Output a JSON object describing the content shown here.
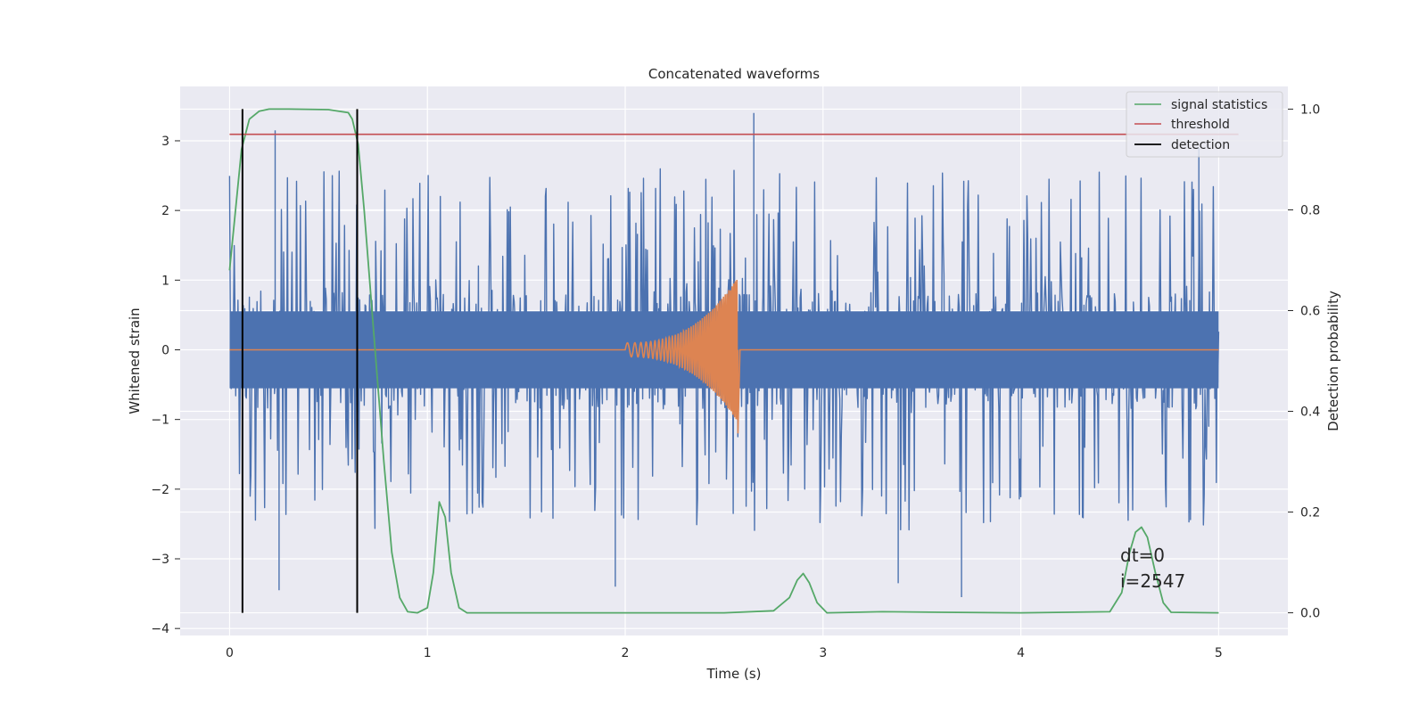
{
  "chart_data": {
    "type": "line",
    "title": "Concatenated waveforms",
    "xlabel": "Time (s)",
    "ylabel_left": "Whitened strain",
    "ylabel_right": "Detection probability",
    "xlim": [
      -0.25,
      5.35
    ],
    "ylim_left": [
      -4.1,
      3.78
    ],
    "ylim_right": [
      -0.045,
      1.045
    ],
    "x_ticks": [
      0,
      1,
      2,
      3,
      4,
      5
    ],
    "x_tick_labels": [
      "0",
      "1",
      "2",
      "3",
      "4",
      "5"
    ],
    "y_left_ticks": [
      -4,
      -3,
      -2,
      -1,
      0,
      1,
      2,
      3
    ],
    "y_left_tick_labels": [
      "−4",
      "−3",
      "−2",
      "−1",
      "0",
      "1",
      "2",
      "3"
    ],
    "y_right_ticks": [
      0.0,
      0.2,
      0.4,
      0.6,
      0.8,
      1.0
    ],
    "y_right_tick_labels": [
      "0.0",
      "0.2",
      "0.4",
      "0.6",
      "0.8",
      "1.0"
    ],
    "grid": true,
    "legend_position": "top-right",
    "series": [
      {
        "kind": "noise",
        "axis": "left",
        "color": "#4c72b0",
        "x_range": [
          0,
          5
        ],
        "core_amplitude": 0.85,
        "peaks": [
          {
            "x": 0.23,
            "y": 3.15
          },
          {
            "x": 0.25,
            "y": -3.45
          },
          {
            "x": 1.95,
            "y": -3.4
          },
          {
            "x": 2.65,
            "y": 3.4
          },
          {
            "x": 3.38,
            "y": -3.35
          },
          {
            "x": 3.7,
            "y": -3.55
          },
          {
            "x": 4.9,
            "y": 2.9
          }
        ]
      },
      {
        "kind": "chirp",
        "axis": "left",
        "color": "#dd8452",
        "x_range": [
          0,
          5
        ],
        "chirp_start": 2.0,
        "chirp_end": 2.57,
        "amplitude_start": 0.1,
        "amplitude_peak": 1.05,
        "amplitude_trough": -1.2
      },
      {
        "name": "signal statistics",
        "axis": "right",
        "color": "#55a868",
        "x": [
          0,
          0.03,
          0.06,
          0.1,
          0.15,
          0.2,
          0.3,
          0.5,
          0.6,
          0.62,
          0.65,
          0.68,
          0.72,
          0.78,
          0.82,
          0.86,
          0.9,
          0.95,
          1.0,
          1.03,
          1.06,
          1.09,
          1.12,
          1.16,
          1.2,
          1.5,
          2.0,
          2.5,
          2.75,
          2.83,
          2.87,
          2.9,
          2.93,
          2.97,
          3.02,
          3.3,
          3.6,
          4.0,
          4.45,
          4.51,
          4.55,
          4.58,
          4.61,
          4.64,
          4.68,
          4.72,
          4.76,
          5.0
        ],
        "y": [
          0.68,
          0.8,
          0.92,
          0.98,
          0.996,
          1.0,
          1.0,
          0.999,
          0.993,
          0.98,
          0.93,
          0.8,
          0.6,
          0.3,
          0.12,
          0.03,
          0.002,
          0.0,
          0.01,
          0.08,
          0.22,
          0.19,
          0.08,
          0.01,
          0.0,
          0.0,
          0.0,
          0.0,
          0.004,
          0.03,
          0.065,
          0.078,
          0.06,
          0.02,
          0.0,
          0.002,
          0.001,
          0.0,
          0.002,
          0.04,
          0.12,
          0.16,
          0.17,
          0.15,
          0.08,
          0.02,
          0.001,
          0.0
        ]
      },
      {
        "name": "threshold",
        "axis": "right",
        "color": "#c44e52",
        "x": [
          0,
          5.1
        ],
        "y": [
          0.95,
          0.95
        ]
      },
      {
        "name": "detection",
        "axis": "right",
        "color": "#000000",
        "vertical_lines_x": [
          0.065,
          0.645
        ],
        "y_range": [
          0.0,
          1.0
        ]
      }
    ],
    "annotations": [
      "dt=0",
      "i=2547"
    ]
  }
}
